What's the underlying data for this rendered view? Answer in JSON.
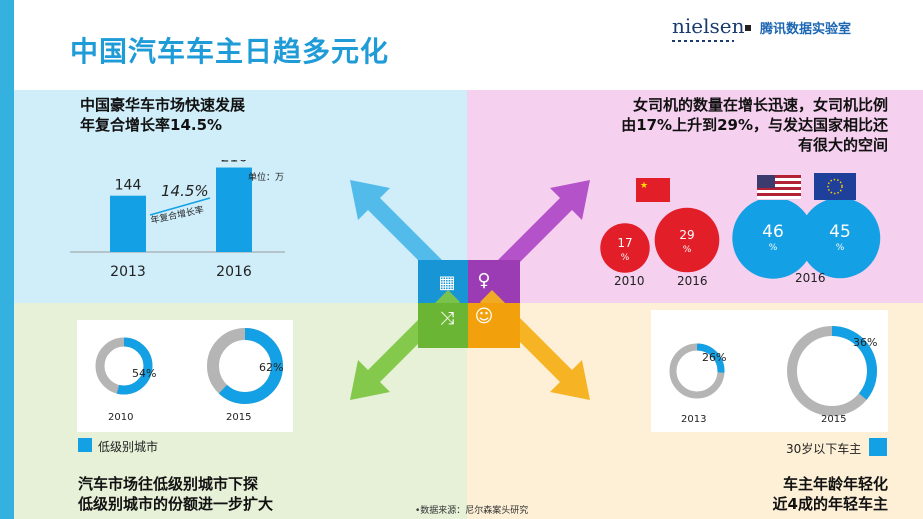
{
  "title": "中国汽车车主日趋多元化",
  "brand": {
    "nielsen": "nielsen",
    "tencent": "腾讯数据实验室"
  },
  "colors": {
    "accent_blue": "#14a0e4",
    "red": "#e21e28",
    "gray": "#b5b5b5",
    "title_blue": "#1f9bd7"
  },
  "icons": [
    "calendar-icon",
    "female-user-icon",
    "shuffle-icon",
    "user-icon"
  ],
  "quadrant_tl": {
    "header_line1": "中国豪华车市场快速发展",
    "header_line2": "年复合增长率14.5%",
    "unit": "单位：万",
    "cagr": "14.5%",
    "cagr_caption": "年复合增长率"
  },
  "quadrant_tr": {
    "header_line1": "女司机的数量在增长迅速，女司机比例",
    "header_line2": "由17%上升到29%，与发达国家相比还",
    "header_line3": "有很大的空间"
  },
  "quadrant_bl": {
    "legend": "低级别城市",
    "footer_line1": "汽车市场往低级别城市下探",
    "footer_line2": "低级别城市的份额进一步扩大"
  },
  "quadrant_br": {
    "legend": "30岁以下车主",
    "footer_line1": "车主年龄年轻化",
    "footer_line2": "近4成的年轻车主"
  },
  "source": "•数据来源：尼尔森案头研究",
  "chart_data": [
    {
      "type": "bar",
      "categories": [
        "2013",
        "2016"
      ],
      "values": [
        144,
        216
      ],
      "ylabel": "单位：万"
    },
    {
      "type": "bubble",
      "circles": [
        {
          "year": "2010",
          "value": 17,
          "label": "17",
          "unit": "%"
        },
        {
          "year": "2016",
          "value": 29,
          "label": "29",
          "unit": "%"
        },
        {
          "value": 46,
          "label": "46",
          "unit": "%"
        },
        {
          "value": 45,
          "label": "45",
          "unit": "%"
        }
      ],
      "shared_year": "2016"
    },
    {
      "type": "pie",
      "charts": [
        {
          "year": "2010",
          "value": 54,
          "label": "54%"
        },
        {
          "year": "2015",
          "value": 62,
          "label": "62%"
        }
      ]
    },
    {
      "type": "pie",
      "charts": [
        {
          "year": "2013",
          "value": 26,
          "label": "26%"
        },
        {
          "year": "2015",
          "value": 36,
          "label": "36%"
        }
      ]
    }
  ]
}
